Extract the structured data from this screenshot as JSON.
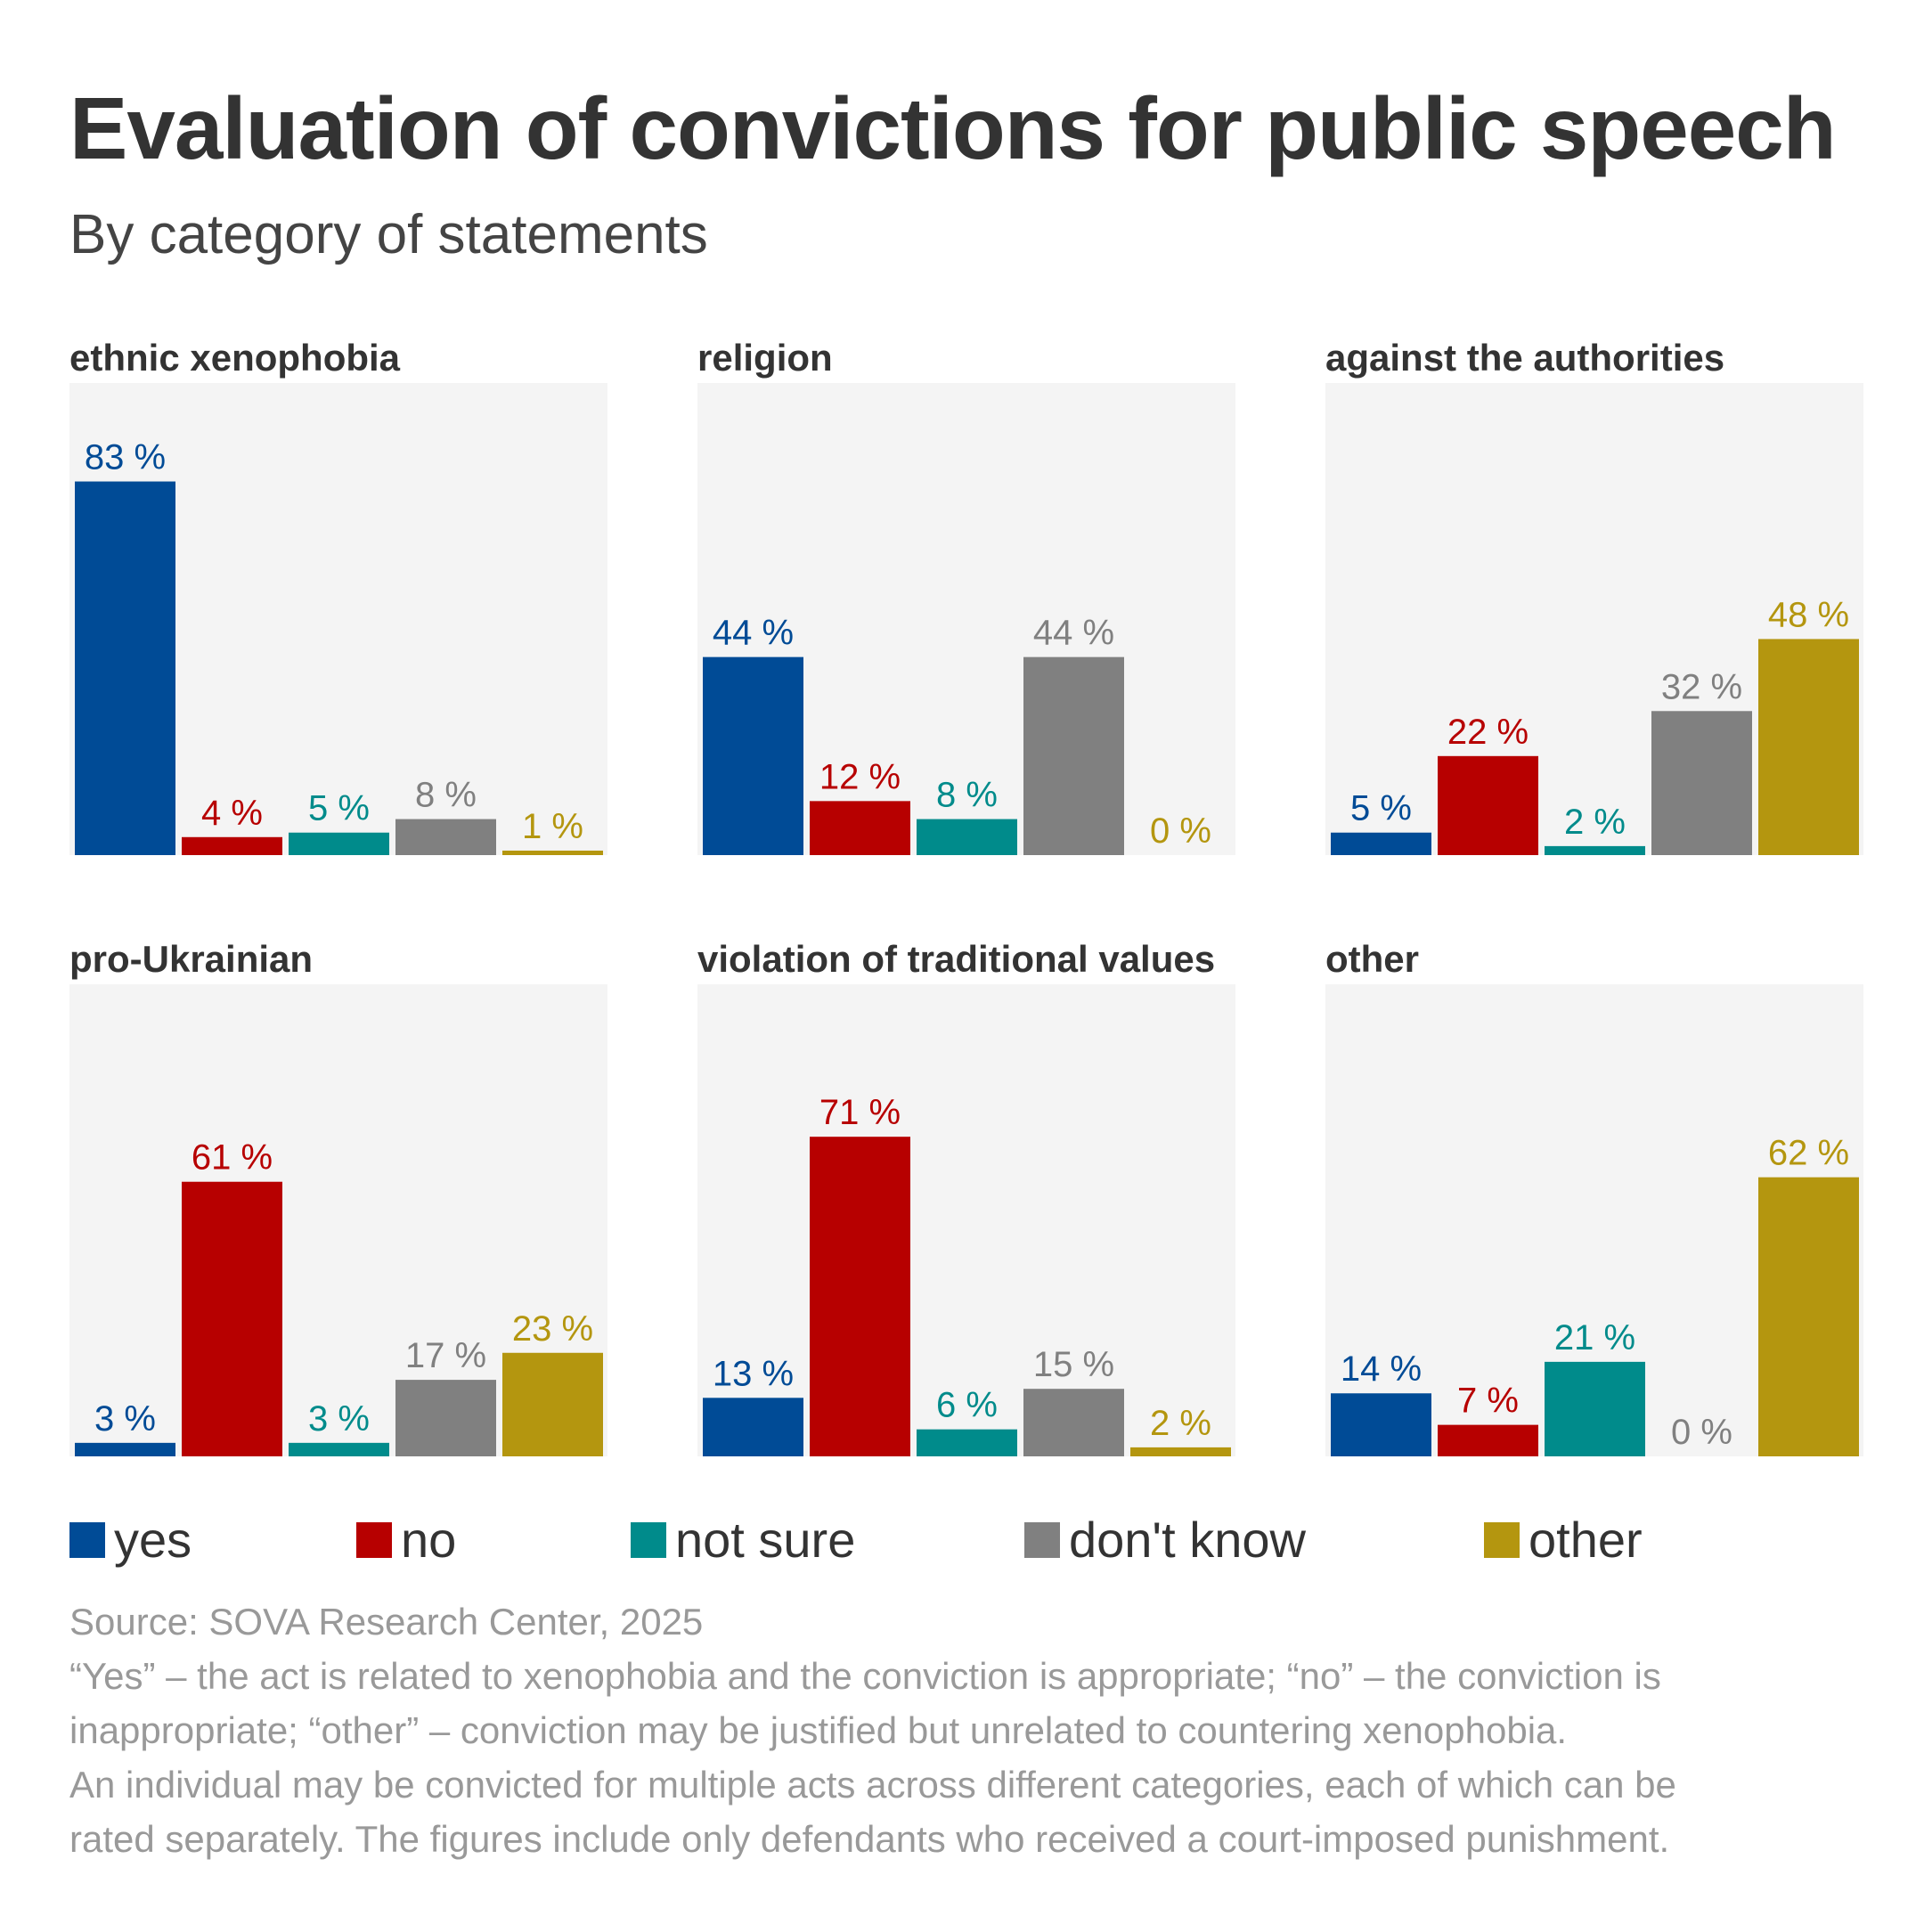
{
  "title": "Evaluation of convictions for public speech",
  "subtitle": "By category of statements",
  "legend": [
    {
      "label": "yes",
      "color": "#004b96"
    },
    {
      "label": "no",
      "color": "#b70000"
    },
    {
      "label": "not sure",
      "color": "#008b8b"
    },
    {
      "label": "don't know",
      "color": "#808080"
    },
    {
      "label": "other",
      "color": "#b4960f"
    }
  ],
  "panel_background": "#f4f4f4",
  "label_colors": [
    "#004b96",
    "#b70000",
    "#008b8b",
    "#808080",
    "#b4960f"
  ],
  "chart_data": [
    {
      "type": "bar",
      "title": "ethnic xenophobia",
      "categories": [
        "yes",
        "no",
        "not sure",
        "don't know",
        "other"
      ],
      "values": [
        83,
        4,
        5,
        8,
        1
      ],
      "labels": [
        "83 %",
        "4 %",
        "5 %",
        "8 %",
        "1 %"
      ],
      "ylim": [
        0,
        93
      ]
    },
    {
      "type": "bar",
      "title": "religion",
      "categories": [
        "yes",
        "no",
        "not sure",
        "don't know",
        "other"
      ],
      "values": [
        44,
        12,
        8,
        44,
        0
      ],
      "labels": [
        "44 %",
        "12 %",
        "8 %",
        "44 %",
        "0 %"
      ],
      "ylim": [
        0,
        93
      ]
    },
    {
      "type": "bar",
      "title": "against the authorities",
      "categories": [
        "yes",
        "no",
        "not sure",
        "don't know",
        "other"
      ],
      "values": [
        5,
        22,
        2,
        32,
        48
      ],
      "labels": [
        "5 %",
        "22 %",
        "2 %",
        "32 %",
        "48 %"
      ],
      "ylim": [
        0,
        93
      ]
    },
    {
      "type": "bar",
      "title": "pro-Ukrainian",
      "categories": [
        "yes",
        "no",
        "not sure",
        "don't know",
        "other"
      ],
      "values": [
        3,
        61,
        3,
        17,
        23
      ],
      "labels": [
        "3 %",
        "61 %",
        "3 %",
        "17 %",
        "23 %"
      ],
      "ylim": [
        0,
        93
      ]
    },
    {
      "type": "bar",
      "title": "violation of traditional values",
      "categories": [
        "yes",
        "no",
        "not sure",
        "don't know",
        "other"
      ],
      "values": [
        13,
        71,
        6,
        15,
        2
      ],
      "labels": [
        "13 %",
        "71 %",
        "6 %",
        "15 %",
        "2 %"
      ],
      "ylim": [
        0,
        93
      ]
    },
    {
      "type": "bar",
      "title": "other",
      "categories": [
        "yes",
        "no",
        "not sure",
        "don't know",
        "other"
      ],
      "values": [
        14,
        7,
        21,
        0,
        62
      ],
      "labels": [
        "14 %",
        "7 %",
        "21 %",
        "0 %",
        "62 %"
      ],
      "ylim": [
        0,
        93
      ]
    }
  ],
  "footer": {
    "source": "Source: SOVA Research Center, 2025",
    "notes": [
      "“Yes” – the act is related to xenophobia and the conviction is appropriate; “no” – the conviction is",
      "inappropriate; “other” – conviction may be justified but unrelated to countering xenophobia.",
      "An individual may be convicted for multiple acts across different categories, each of which can be",
      "rated separately. The figures include only defendants who received a court-imposed punishment."
    ]
  }
}
